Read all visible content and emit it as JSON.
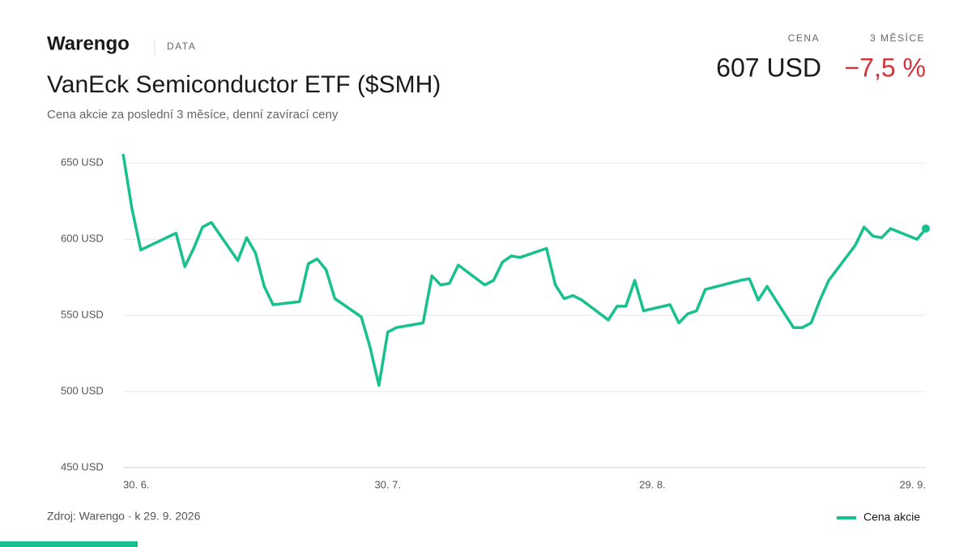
{
  "header": {
    "logo": "Warengo",
    "section": "DATA",
    "price_label": "CENA",
    "price": "607 USD",
    "change_label": "3 MĚSÍCE",
    "change": "−7,5 %"
  },
  "chart_data": {
    "type": "line",
    "title": "VanEck Semiconductor ETF ($SMH)",
    "subtitle": "Cena akcie za poslední 3 měsíce, denní zavírací ceny",
    "x": [
      "30. 6.",
      "1. 7.",
      "2. 7.",
      "6. 7.",
      "7. 7.",
      "8. 7.",
      "9. 7.",
      "10. 7.",
      "13. 7.",
      "14. 7.",
      "15. 7.",
      "16. 7.",
      "17. 7.",
      "20. 7.",
      "21. 7.",
      "22. 7.",
      "23. 7.",
      "24. 7.",
      "27. 7.",
      "28. 7.",
      "29. 7.",
      "30. 7.",
      "31. 7.",
      "3. 8.",
      "4. 8.",
      "5. 8.",
      "6. 8.",
      "7. 8.",
      "10. 8.",
      "11. 8.",
      "12. 8.",
      "13. 8.",
      "14. 8.",
      "17. 8.",
      "18. 8.",
      "19. 8.",
      "20. 8.",
      "21. 8.",
      "24. 8.",
      "25. 8.",
      "26. 8.",
      "27. 8.",
      "28. 8.",
      "31. 8.",
      "1. 9.",
      "2. 9.",
      "3. 9.",
      "4. 9.",
      "8. 9.",
      "9. 9.",
      "10. 9.",
      "11. 9.",
      "14. 9.",
      "15. 9.",
      "16. 9.",
      "17. 9.",
      "18. 9.",
      "21. 9.",
      "22. 9.",
      "23. 9.",
      "24. 9.",
      "25. 9.",
      "28. 9.",
      "29. 9."
    ],
    "series": [
      {
        "name": "Cena akcie",
        "color": "#17c08d",
        "values": [
          656,
          620,
          593,
          604,
          582,
          594,
          608,
          611,
          586,
          601,
          591,
          569,
          557,
          559,
          584,
          587,
          580,
          561,
          549,
          529,
          504,
          539,
          542,
          545,
          576,
          570,
          571,
          583,
          570,
          573,
          585,
          589,
          588,
          594,
          570,
          561,
          563,
          560,
          547,
          556,
          556,
          573,
          553,
          557,
          545,
          551,
          553,
          567,
          573,
          574,
          560,
          569,
          542,
          542,
          545,
          560,
          573,
          596,
          608,
          602,
          601,
          607,
          600,
          607
        ]
      }
    ],
    "xlim": [
      "30. 6.",
      "29. 9."
    ],
    "xticks": [
      "30. 6.",
      "30. 7.",
      "29. 8.",
      "29. 9."
    ],
    "ylim": [
      450,
      656
    ],
    "yticks": [
      {
        "value": 450,
        "label": "450 USD"
      },
      {
        "value": 500,
        "label": "500 USD"
      },
      {
        "value": 550,
        "label": "550 USD"
      },
      {
        "value": 600,
        "label": "600 USD"
      },
      {
        "value": 650,
        "label": "650 USD"
      }
    ],
    "grid": true
  },
  "footer": {
    "source": "Zdroj: Warengo · k 29. 9. 2026"
  }
}
